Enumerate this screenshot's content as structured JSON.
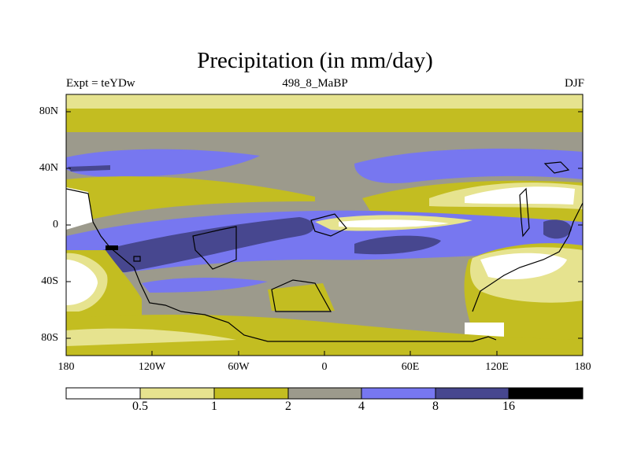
{
  "title": "Precipitation (in mm/day)",
  "subtitle_left": "Expt = teYDw",
  "subtitle_center": "498_8_MaBP",
  "subtitle_right": "DJF",
  "lat_labels": [
    "80N",
    "40N",
    "0",
    "40S",
    "80S"
  ],
  "lon_labels": [
    "180",
    "120W",
    "60W",
    "0",
    "60E",
    "120E",
    "180"
  ],
  "colorbar_labels": [
    "0.5",
    "1",
    "2",
    "4",
    "8",
    "16"
  ],
  "colors": {
    "lt0_5": "#ffffff",
    "c0_5_1": "#e6e38f",
    "c1_2": "#c3bd21",
    "c2_4": "#9c9a8c",
    "c4_8": "#7777f0",
    "c8_16": "#47478f",
    "gt16": "#000000"
  }
}
